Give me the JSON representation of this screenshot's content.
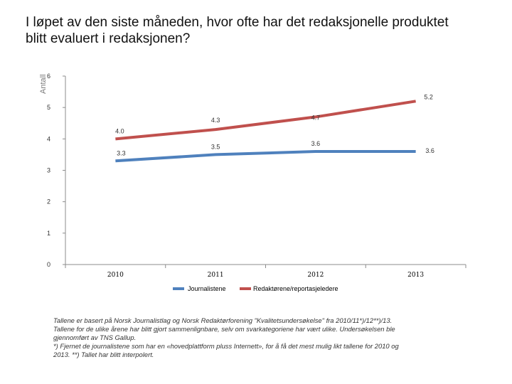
{
  "title_line1": "I løpet av den siste måneden, hvor ofte har det redaksjonelle produktet",
  "title_line2": "blitt evaluert i redaksjonen?",
  "chart_data": {
    "type": "line",
    "title": "I løpet av den siste måneden, hvor ofte har det redaksjonelle produktet blitt evaluert i redaksjonen?",
    "ylabel": "Antall",
    "xlabel": "",
    "ylim": [
      0,
      6
    ],
    "yticks": [
      0,
      1,
      2,
      3,
      4,
      5,
      6
    ],
    "categories": [
      "2010",
      "2011",
      "2012",
      "2013"
    ],
    "series": [
      {
        "name": "Journalistene",
        "color": "#4f81bd",
        "values": [
          3.3,
          3.5,
          3.6,
          3.6
        ],
        "labels": [
          "3.3",
          "3.5",
          "3.6",
          "3.6"
        ]
      },
      {
        "name": "Redaktørene/reportasjeledere",
        "color": "#c0504d",
        "values": [
          4.0,
          4.3,
          4.7,
          5.2
        ],
        "labels": [
          "4.0",
          "4.3",
          "4.7",
          "5.2"
        ]
      }
    ],
    "legend_position": "bottom"
  },
  "footnote": {
    "line1": "Tallene er basert på Norsk Journalistlag og Norsk Redaktørforening \"Kvalitetsundersøkelse\" fra 2010/11*)/12**)/13.",
    "line2": "Tallene for de ulike årene har blitt gjort sammenlignbare, selv om svarkategoriene har vært ulike. Undersøkelsen ble",
    "line3": "gjennomført av TNS Gallup.",
    "line4": "*) Fjernet de journalistene som har en «hovedplattform pluss Internett», for å få det mest mulig likt tallene for 2010 og",
    "line5": "2013. **) Tallet har blitt interpolert."
  }
}
